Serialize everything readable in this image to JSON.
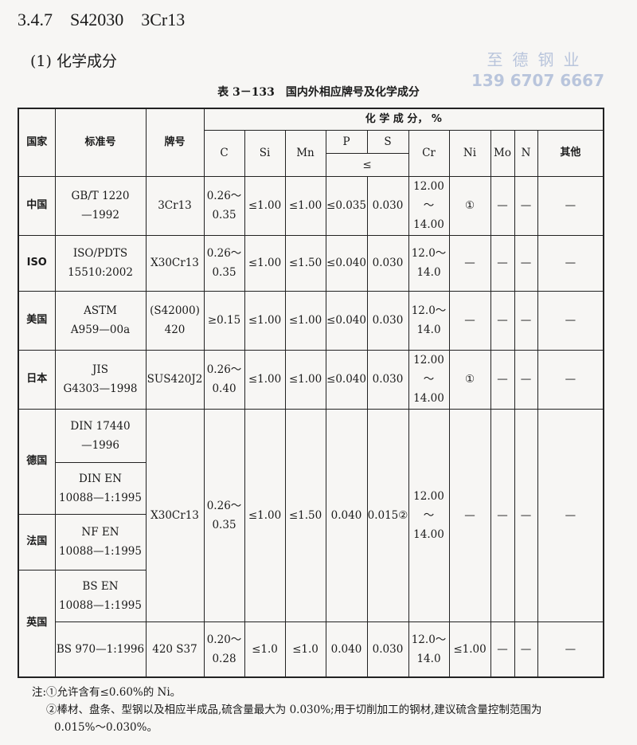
{
  "section": {
    "number": "3.4.7",
    "code": "S42030",
    "grade": "3Cr13"
  },
  "subsection": "(1) 化学成分",
  "watermark": {
    "company": "至德钢业",
    "phone": "139 6707 6667"
  },
  "caption": "表 3－133　国内外相应牌号及化学成分",
  "headers": {
    "country": "国家",
    "standard": "标准号",
    "brand": "牌号",
    "composition": "化 学 成 分， %",
    "le": "≤",
    "elements": [
      "C",
      "Si",
      "Mn",
      "P",
      "S",
      "Cr",
      "Ni",
      "Mo",
      "N",
      "其他"
    ]
  },
  "rows": [
    {
      "country": "中国",
      "standard": [
        "GB/T 1220",
        "—1992"
      ],
      "brand": "3Cr13",
      "C": [
        "0.26～",
        "0.35"
      ],
      "Si": "≤1.00",
      "Mn": "≤1.00",
      "P": "≤0.035",
      "S": "0.030",
      "Cr": [
        "12.00～",
        "14.00"
      ],
      "Ni": "①",
      "Mo": "—",
      "N": "—",
      "other": "—"
    },
    {
      "country": "ISO",
      "standard": [
        "ISO/PDTS",
        "15510:2002"
      ],
      "brand": "X30Cr13",
      "C": [
        "0.26～",
        "0.35"
      ],
      "Si": "≤1.00",
      "Mn": "≤1.50",
      "P": "≤0.040",
      "S": "0.030",
      "Cr": [
        "12.0～",
        "14.0"
      ],
      "Ni": "—",
      "Mo": "—",
      "N": "—",
      "other": "—"
    },
    {
      "country": "美国",
      "standard": [
        "ASTM",
        "A959—00a"
      ],
      "brand": [
        "(S42000)",
        "420"
      ],
      "C": [
        "≥0.15"
      ],
      "Si": "≤1.00",
      "Mn": "≤1.00",
      "P": "≤0.040",
      "S": "0.030",
      "Cr": [
        "12.0～",
        "14.0"
      ],
      "Ni": "—",
      "Mo": "—",
      "N": "—",
      "other": "—"
    },
    {
      "country": "日本",
      "standard": [
        "JIS",
        "G4303—1998"
      ],
      "brand": "SUS420J2",
      "C": [
        "0.26～",
        "0.40"
      ],
      "Si": "≤1.00",
      "Mn": "≤1.00",
      "P": "≤0.040",
      "S": "0.030",
      "Cr": [
        "12.00～",
        "14.00"
      ],
      "Ni": "①",
      "Mo": "—",
      "N": "—",
      "other": "—"
    }
  ],
  "euro": {
    "countries": {
      "de": "德国",
      "fr": "法国",
      "uk": "英国"
    },
    "standards": [
      [
        "DIN 17440",
        "—1996"
      ],
      [
        "DIN EN",
        "10088—1:1995"
      ],
      [
        "NF EN",
        "10088—1:1995"
      ],
      [
        "BS EN",
        "10088—1:1995"
      ]
    ],
    "brand": "X30Cr13",
    "C": [
      "0.26～",
      "0.35"
    ],
    "Si": "≤1.00",
    "Mn": "≤1.50",
    "P": "0.040",
    "S": "0.015②",
    "Cr": [
      "12.00～",
      "14.00"
    ],
    "Ni": "—",
    "Mo": "—",
    "N": "—",
    "other": "—"
  },
  "last": {
    "standard": "BS 970—1:1996",
    "brand": "420 S37",
    "C": [
      "0.20～",
      "0.28"
    ],
    "Si": "≤1.0",
    "Mn": "≤1.0",
    "P": "0.040",
    "S": "0.030",
    "Cr": [
      "12.0～",
      "14.0"
    ],
    "Ni": "≤1.00",
    "Mo": "—",
    "N": "—",
    "other": "—"
  },
  "notes": [
    "注:①允许含有≤0.60%的 Ni。",
    "②棒材、盘条、型钢以及相应半成品,硫含量最大为 0.030%;用于切削加工的钢材,建议硫含量控制范围为",
    "0.015%～0.030%。"
  ]
}
